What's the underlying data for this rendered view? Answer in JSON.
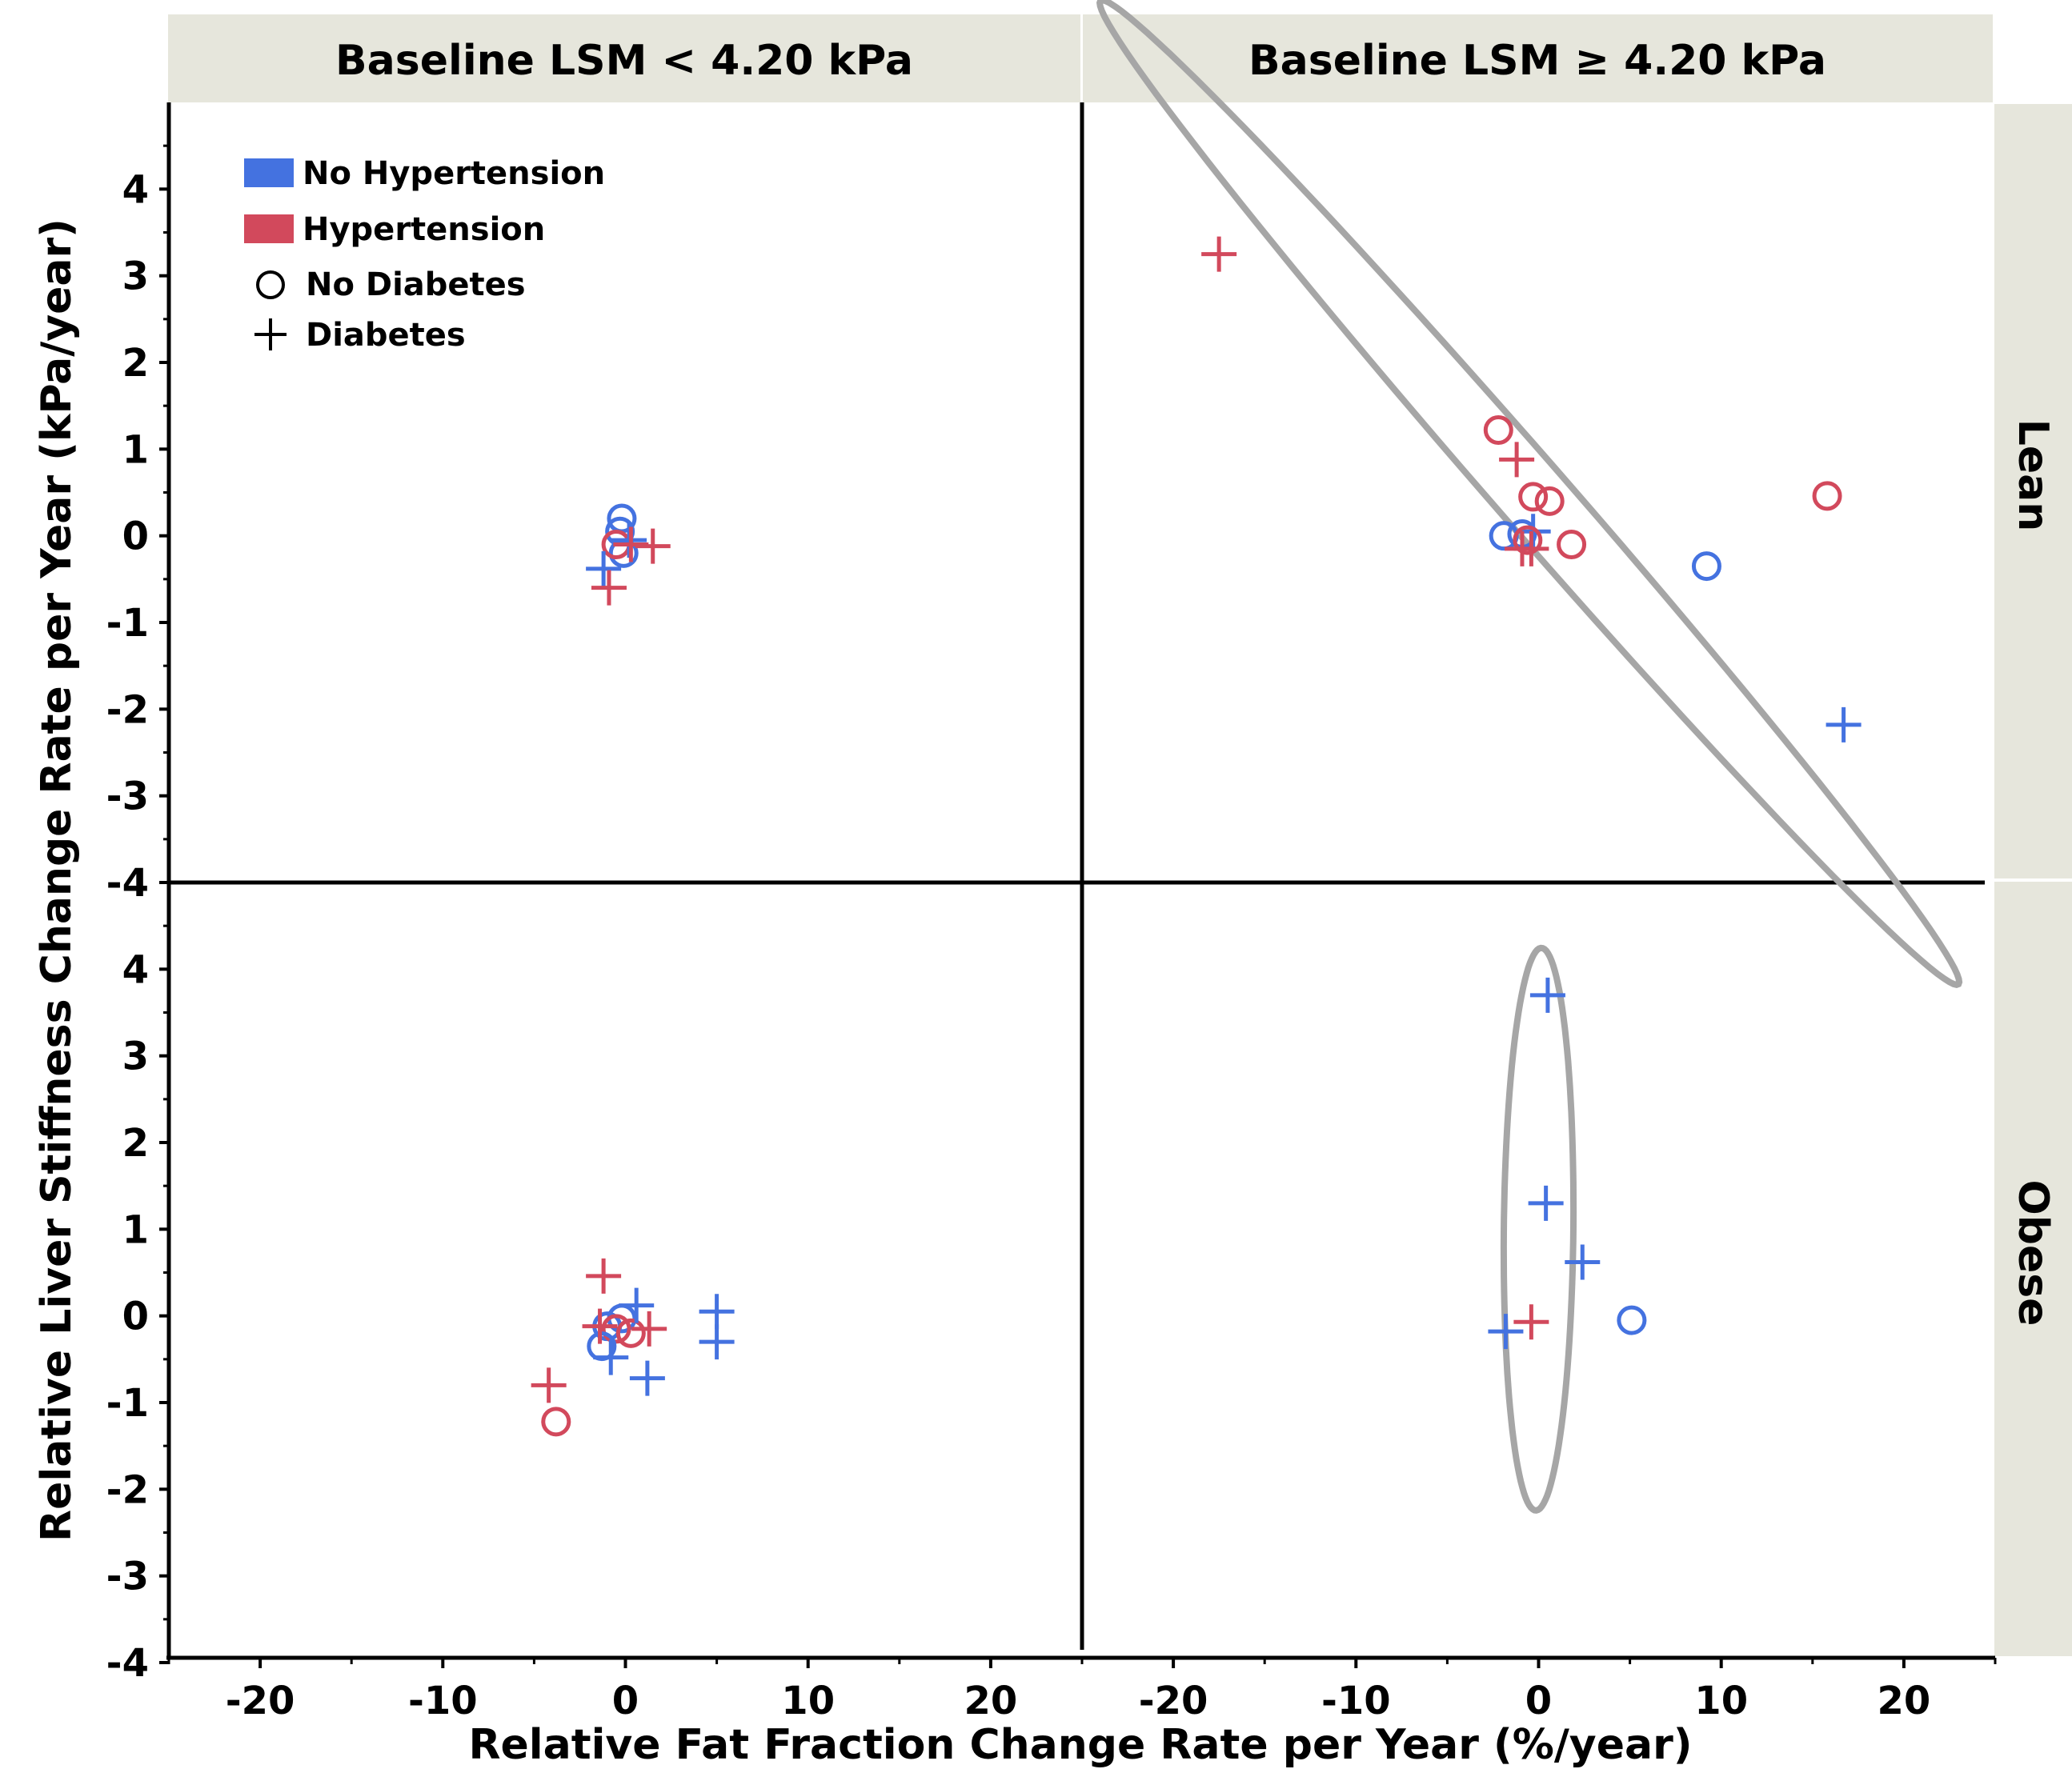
{
  "chart_data": {
    "type": "scatter",
    "xlabel": "Relative Fat Fraction Change Rate per Year (%/year)",
    "ylabel": "Relative Liver Stiffness Change Rate per Year (kPa/year)",
    "xlim": [
      -25,
      25
    ],
    "ylim": [
      -4,
      5
    ],
    "x_ticks": [
      -20,
      -10,
      0,
      10,
      20
    ],
    "y_ticks": [
      -4,
      -3,
      -2,
      -1,
      0,
      1,
      2,
      3,
      4
    ],
    "col_labels": [
      "Baseline LSM < 4.20 kPa",
      "Baseline LSM ≥ 4.20 kPa"
    ],
    "row_labels": [
      "Lean",
      "Obese"
    ],
    "legend": {
      "placement": "top-left",
      "entries": [
        {
          "label": "No Hypertension",
          "kind": "color",
          "color": "#4472e0"
        },
        {
          "label": "Hypertension",
          "kind": "color",
          "color": "#d2495c"
        },
        {
          "label": "No Diabetes",
          "kind": "circle"
        },
        {
          "label": "Diabetes",
          "kind": "plus"
        }
      ]
    },
    "colors": {
      "no_hypertension": "#4472e0",
      "hypertension": "#d2495c",
      "ellipse": "#a6a6a6"
    },
    "panels": [
      {
        "name": "lean-low-lsm",
        "row": 0,
        "col": 0,
        "ellipse": null,
        "points": [
          {
            "x": -0.2,
            "y": 0.2,
            "htn": false,
            "dm": false
          },
          {
            "x": -0.3,
            "y": 0.05,
            "htn": false,
            "dm": false
          },
          {
            "x": -0.1,
            "y": -0.2,
            "htn": false,
            "dm": false
          },
          {
            "x": -0.5,
            "y": -0.1,
            "htn": true,
            "dm": false
          },
          {
            "x": 0.2,
            "y": -0.05,
            "htn": false,
            "dm": true
          },
          {
            "x": 0.3,
            "y": -0.1,
            "htn": true,
            "dm": true
          },
          {
            "x": 1.5,
            "y": -0.12,
            "htn": true,
            "dm": true
          },
          {
            "x": -1.2,
            "y": -0.38,
            "htn": false,
            "dm": true
          },
          {
            "x": -0.9,
            "y": -0.6,
            "htn": true,
            "dm": true
          }
        ]
      },
      {
        "name": "lean-high-lsm",
        "row": 0,
        "col": 1,
        "ellipse": {
          "cx": -0.5,
          "cy": 0.5,
          "rx": 24.2,
          "ry": 0.6,
          "angle_deg": -13.5
        },
        "points": [
          {
            "x": -17.5,
            "y": 3.25,
            "htn": true,
            "dm": true
          },
          {
            "x": -2.2,
            "y": 1.22,
            "htn": true,
            "dm": false
          },
          {
            "x": -1.2,
            "y": 0.88,
            "htn": true,
            "dm": true
          },
          {
            "x": -0.3,
            "y": 0.45,
            "htn": true,
            "dm": false
          },
          {
            "x": 0.6,
            "y": 0.4,
            "htn": true,
            "dm": false
          },
          {
            "x": 15.8,
            "y": 0.46,
            "htn": true,
            "dm": false
          },
          {
            "x": -1.9,
            "y": 0.0,
            "htn": false,
            "dm": false
          },
          {
            "x": -0.9,
            "y": 0.02,
            "htn": false,
            "dm": false
          },
          {
            "x": -0.3,
            "y": 0.05,
            "htn": false,
            "dm": true
          },
          {
            "x": -0.6,
            "y": -0.05,
            "htn": true,
            "dm": false
          },
          {
            "x": -0.4,
            "y": -0.15,
            "htn": true,
            "dm": true
          },
          {
            "x": -0.9,
            "y": -0.15,
            "htn": true,
            "dm": true
          },
          {
            "x": 1.8,
            "y": -0.1,
            "htn": true,
            "dm": false
          },
          {
            "x": 9.2,
            "y": -0.35,
            "htn": false,
            "dm": false
          },
          {
            "x": 16.7,
            "y": -2.18,
            "htn": false,
            "dm": true
          }
        ]
      },
      {
        "name": "obese-low-lsm",
        "row": 1,
        "col": 0,
        "ellipse": null,
        "points": [
          {
            "x": -1.2,
            "y": 0.46,
            "htn": true,
            "dm": true
          },
          {
            "x": -0.2,
            "y": -0.03,
            "htn": false,
            "dm": false
          },
          {
            "x": -1.0,
            "y": -0.12,
            "htn": false,
            "dm": false
          },
          {
            "x": -0.5,
            "y": -0.15,
            "htn": true,
            "dm": false
          },
          {
            "x": -1.3,
            "y": -0.35,
            "htn": false,
            "dm": false
          },
          {
            "x": 0.3,
            "y": -0.2,
            "htn": true,
            "dm": false
          },
          {
            "x": 0.6,
            "y": 0.12,
            "htn": false,
            "dm": true
          },
          {
            "x": 1.3,
            "y": -0.15,
            "htn": true,
            "dm": true
          },
          {
            "x": -1.4,
            "y": -0.12,
            "htn": true,
            "dm": true
          },
          {
            "x": -0.8,
            "y": -0.48,
            "htn": false,
            "dm": true
          },
          {
            "x": 5.0,
            "y": 0.05,
            "htn": false,
            "dm": true
          },
          {
            "x": 5.0,
            "y": -0.3,
            "htn": false,
            "dm": true
          },
          {
            "x": 1.2,
            "y": -0.72,
            "htn": false,
            "dm": true
          },
          {
            "x": -4.2,
            "y": -0.8,
            "htn": true,
            "dm": true
          },
          {
            "x": -3.8,
            "y": -1.22,
            "htn": true,
            "dm": false
          }
        ]
      },
      {
        "name": "obese-high-lsm",
        "row": 1,
        "col": 1,
        "ellipse": {
          "cx": 0.0,
          "cy": 1.0,
          "rx": 1.9,
          "ry": 3.25,
          "angle_deg": -4
        },
        "points": [
          {
            "x": 0.5,
            "y": 3.7,
            "htn": false,
            "dm": true
          },
          {
            "x": 0.4,
            "y": 1.3,
            "htn": false,
            "dm": true
          },
          {
            "x": 2.4,
            "y": 0.62,
            "htn": false,
            "dm": true
          },
          {
            "x": 5.1,
            "y": -0.05,
            "htn": false,
            "dm": false
          },
          {
            "x": -0.4,
            "y": -0.07,
            "htn": true,
            "dm": true
          },
          {
            "x": -1.8,
            "y": -0.18,
            "htn": false,
            "dm": true
          }
        ]
      }
    ]
  }
}
